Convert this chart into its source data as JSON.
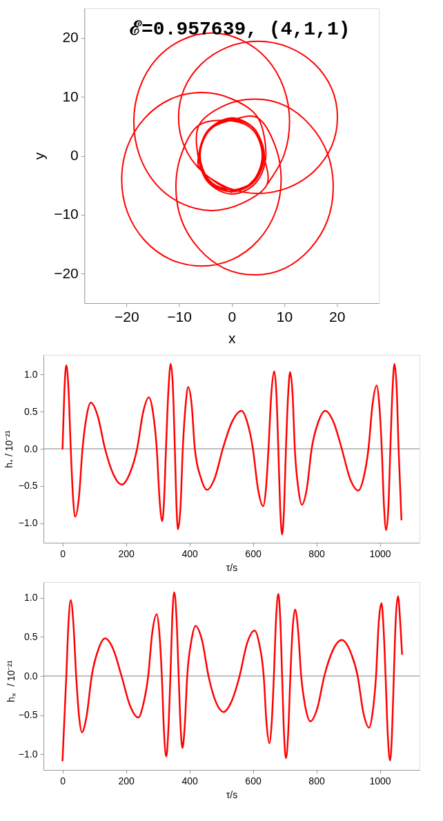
{
  "chart_data": [
    {
      "type": "line",
      "title": "ℰ=0.957639, (4,1,1)",
      "xlabel": "x",
      "ylabel": "y",
      "color": "#ff0000",
      "x": [
        6.7,
        9.9,
        11.0,
        9.9,
        6.7,
        1.9,
        -3.8,
        -9.5,
        -14.3,
        -17.5,
        -18.6,
        -17.5,
        -14.3,
        -9.5,
        -3.8,
        1.9,
        6.7,
        6.0,
        4.4,
        0.1,
        -4.4,
        -6.0,
        -4.4,
        0.0,
        4.4,
        6.2,
        4.3,
        0.0,
        -4.5,
        -6.3,
        -5.7,
        -0.8,
        5.0,
        10.8,
        15.7,
        19.0,
        20.1,
        19.0,
        15.7,
        10.8,
        5.0,
        -0.8,
        -5.7,
        -9.0,
        -10.1,
        -9.0,
        -5.7,
        0.1,
        4.2,
        5.8,
        4.1,
        -0.1,
        -4.3,
        -6.0,
        -4.2,
        0.0,
        4.3,
        6.0,
        4.2,
        0.0,
        -6.2,
        -9.5,
        -10.6,
        -9.5,
        -6.2,
        -1.4,
        4.4,
        10.1,
        14.9,
        18.2,
        19.3,
        18.2,
        14.9,
        10.1,
        4.4,
        -1.4,
        -6.2,
        -6.4,
        -4.5,
        0.0,
        4.6,
        6.5,
        5.0,
        0.1,
        -5.8,
        -11.6,
        -16.5,
        -19.8,
        -20.9,
        -19.8,
        -16.5,
        -11.6,
        -5.8,
        0.1,
        5.0,
        8.3,
        9.4,
        8.3,
        5.0,
        0.2,
        -4.3,
        -6.1,
        -4.3,
        0.0,
        4.4,
        6.1,
        4.4,
        0.1,
        -4.4,
        -6.2,
        -4.4,
        0.0
      ],
      "values": [
        -4.9,
        0.0,
        5.8,
        11.5,
        16.4,
        19.6,
        20.8,
        19.6,
        16.4,
        11.5,
        5.8,
        0.0,
        -4.9,
        -8.1,
        -9.3,
        -8.1,
        -4.9,
        0.3,
        4.5,
        6.3,
        4.4,
        0.0,
        -4.4,
        -6.1,
        -4.3,
        0.1,
        4.5,
        6.4,
        4.3,
        -0.1,
        -2.6,
        -5.4,
        -6.4,
        -5.4,
        -2.6,
        1.6,
        6.5,
        11.4,
        15.6,
        18.4,
        19.4,
        18.4,
        15.6,
        11.4,
        6.5,
        1.6,
        -2.6,
        -5.9,
        -4.1,
        0.1,
        4.3,
        6.0,
        4.2,
        0.0,
        -4.2,
        -5.8,
        -4.2,
        0.0,
        4.2,
        5.9,
        5.2,
        0.4,
        -5.3,
        -11.0,
        -15.8,
        -19.1,
        -20.2,
        -19.1,
        -15.8,
        -11.0,
        -5.3,
        0.4,
        5.2,
        8.5,
        9.6,
        8.5,
        5.2,
        0.0,
        -4.5,
        -6.5,
        -4.6,
        0.1,
        6.4,
        9.6,
        10.7,
        9.6,
        6.4,
        1.6,
        -4.0,
        -9.6,
        -14.4,
        -17.6,
        -18.7,
        -17.6,
        -14.4,
        -9.6,
        -4.0,
        1.6,
        6.4,
        6.1,
        4.3,
        0.0,
        -4.3,
        -6.1,
        -4.3,
        0.1,
        4.4,
        6.2,
        4.3,
        0.0,
        -4.4,
        -6.2
      ],
      "xlim": [
        -28,
        28
      ],
      "ylim": [
        -25,
        25
      ],
      "xticks": [
        -20,
        -10,
        0,
        10,
        20
      ],
      "yticks": [
        -20,
        -10,
        0,
        10,
        20
      ]
    },
    {
      "type": "line",
      "xlabel": "τ/s",
      "ylabel": "h₊ / 10⁻²¹",
      "color": "#ff0000",
      "x": [
        0,
        6,
        12,
        19,
        26,
        33,
        40,
        52,
        63,
        76,
        89,
        111,
        134,
        160,
        187,
        211,
        235,
        254,
        272,
        285,
        297,
        306,
        314,
        320,
        326,
        334,
        341,
        348,
        354,
        359,
        364,
        372,
        379,
        388,
        396,
        407,
        417,
        436,
        455,
        480,
        505,
        534,
        564,
        582,
        600,
        616,
        632,
        641,
        649,
        658,
        667,
        674,
        680,
        686,
        692,
        698,
        704,
        711,
        717,
        725,
        732,
        743,
        754,
        770,
        785,
        806,
        828,
        854,
        880,
        906,
        932,
        948,
        964,
        977,
        990,
        998,
        1006,
        1013,
        1020,
        1027,
        1033,
        1040,
        1046,
        1053,
        1059,
        1068
      ],
      "values": [
        0,
        0.79,
        1.12,
        0.79,
        0,
        -0.64,
        -0.91,
        -0.64,
        0,
        0.44,
        0.62,
        0.44,
        0,
        -0.34,
        -0.48,
        -0.34,
        0,
        0.49,
        0.69,
        0.49,
        0,
        -0.69,
        -0.97,
        -0.69,
        0,
        0.81,
        1.14,
        0.81,
        0,
        -0.76,
        -1.08,
        -0.76,
        0,
        0.59,
        0.83,
        0.59,
        0,
        -0.39,
        -0.55,
        -0.39,
        0,
        0.36,
        0.51,
        0.36,
        0,
        -0.54,
        -0.77,
        -0.54,
        0,
        0.74,
        1.04,
        0.74,
        0,
        -0.81,
        -1.15,
        -0.81,
        0,
        0.73,
        1.03,
        0.73,
        0,
        -0.53,
        -0.75,
        -0.53,
        0,
        0.36,
        0.51,
        0.36,
        0,
        -0.4,
        -0.56,
        -0.4,
        0,
        0.6,
        0.85,
        0.6,
        0,
        -0.77,
        -1.09,
        -0.77,
        0,
        0.81,
        1.14,
        0.81,
        0,
        -0.95
      ],
      "xlim": [
        -60,
        1125
      ],
      "ylim": [
        -1.26,
        1.26
      ],
      "xticks": [
        0,
        200,
        400,
        600,
        800,
        1000
      ],
      "yticks": [
        {
          "value": -1,
          "label": "−1.0"
        },
        {
          "value": -0.5,
          "label": "−0.5"
        },
        {
          "value": 0,
          "label": "0.0"
        },
        {
          "value": 0.5,
          "label": "0.5"
        },
        {
          "value": 1,
          "label": "1.0"
        }
      ],
      "ref_lines": [
        {
          "axis": "y",
          "value": 0,
          "color": "#808080"
        }
      ]
    },
    {
      "type": "line",
      "xlabel": "τ/s",
      "ylabel": "h$_{×}$ / 10⁻²¹",
      "color": "#ff0000",
      "x": [
        0,
        12,
        19,
        26,
        34,
        43,
        52,
        61,
        76,
        92,
        113,
        134,
        160,
        186,
        212,
        239,
        254,
        270,
        283,
        297,
        305,
        313,
        320,
        327,
        333,
        340,
        346,
        352,
        359,
        366,
        372,
        378,
        385,
        393,
        406,
        419,
        440,
        460,
        483,
        507,
        532,
        558,
        581,
        605,
        620,
        634,
        643,
        652,
        659,
        666,
        673,
        680,
        686,
        692,
        698,
        704,
        711,
        718,
        725,
        733,
        742,
        752,
        766,
        781,
        803,
        825,
        852,
        880,
        905,
        930,
        948,
        966,
        977,
        988,
        996,
        1005,
        1011,
        1018,
        1025,
        1032,
        1038,
        1044,
        1050,
        1057,
        1064,
        1070
      ],
      "values": [
        -1.08,
        0,
        0.69,
        0.97,
        0.69,
        0,
        -0.51,
        -0.72,
        -0.51,
        0,
        0.34,
        0.48,
        0.34,
        0,
        -0.37,
        -0.53,
        -0.37,
        0,
        0.56,
        0.79,
        0.56,
        0,
        -0.73,
        -1.03,
        -0.73,
        0,
        0.76,
        1.07,
        0.76,
        0,
        -0.65,
        -0.92,
        -0.65,
        0,
        0.45,
        0.64,
        0.45,
        0,
        -0.33,
        -0.46,
        -0.33,
        0,
        0.41,
        0.58,
        0.41,
        0,
        -0.61,
        -0.86,
        -0.61,
        0,
        0.74,
        1.05,
        0.74,
        0,
        -0.74,
        -1.05,
        -0.74,
        0,
        0.6,
        0.85,
        0.6,
        0,
        -0.41,
        -0.58,
        -0.41,
        0,
        0.33,
        0.46,
        0.33,
        0,
        -0.47,
        -0.66,
        -0.47,
        0,
        0.66,
        0.93,
        0.66,
        0,
        -0.76,
        -1.08,
        -0.76,
        0,
        0.72,
        1.02,
        0.7,
        0.28
      ],
      "xlim": [
        -60,
        1125
      ],
      "ylim": [
        -1.2,
        1.2
      ],
      "xticks": [
        0,
        200,
        400,
        600,
        800,
        1000
      ],
      "yticks": [
        {
          "value": -1,
          "label": "−1.0"
        },
        {
          "value": -0.5,
          "label": "−0.5"
        },
        {
          "value": 0,
          "label": "0.0"
        },
        {
          "value": 0.5,
          "label": "0.5"
        },
        {
          "value": 1,
          "label": "1.0"
        }
      ],
      "ref_lines": [
        {
          "axis": "y",
          "value": 0,
          "color": "#808080"
        }
      ]
    }
  ]
}
